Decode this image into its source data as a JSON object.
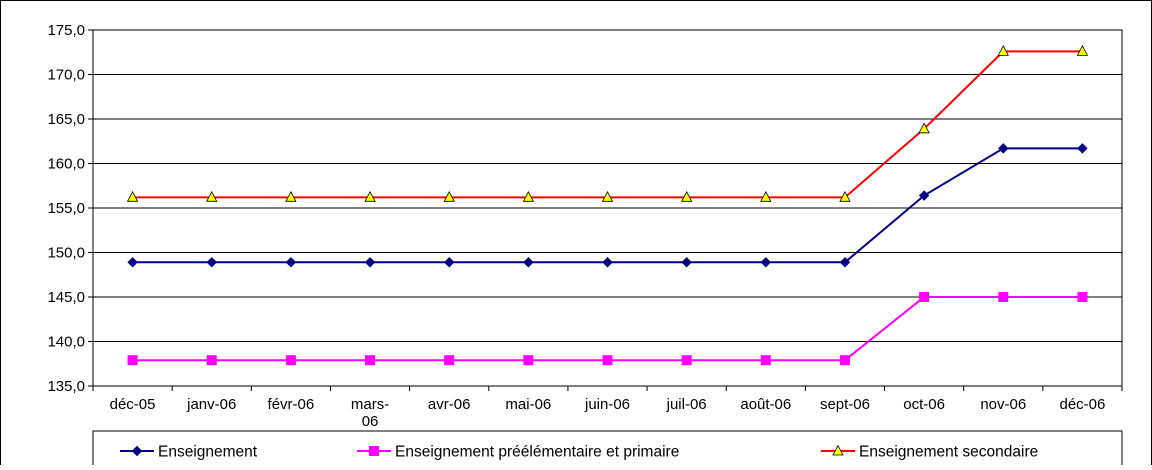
{
  "chart_data": {
    "type": "line",
    "title": "",
    "xlabel": "",
    "ylabel": "",
    "categories": [
      [
        "déc-05"
      ],
      [
        "janv-06"
      ],
      [
        "févr-06"
      ],
      [
        "mars-",
        "06"
      ],
      [
        "avr-06"
      ],
      [
        "mai-06"
      ],
      [
        "juin-06"
      ],
      [
        "juil-06"
      ],
      [
        "août-06"
      ],
      [
        "sept-06"
      ],
      [
        "oct-06"
      ],
      [
        "nov-06"
      ],
      [
        "déc-06"
      ]
    ],
    "ylim": [
      135.0,
      175.0
    ],
    "y_ticks": [
      "135,0",
      "140,0",
      "145,0",
      "150,0",
      "155,0",
      "160,0",
      "165,0",
      "170,0",
      "175,0"
    ],
    "grid": true,
    "legend_position": "bottom",
    "series": [
      {
        "name": "Enseignement",
        "color": "#000080",
        "marker": "diamond",
        "marker_fill": "#000080",
        "values": [
          148.9,
          148.9,
          148.9,
          148.9,
          148.9,
          148.9,
          148.9,
          148.9,
          148.9,
          148.9,
          156.4,
          161.7,
          161.7
        ]
      },
      {
        "name": "Enseignement préélémentaire et primaire",
        "color": "#FF00FF",
        "marker": "square",
        "marker_fill": "#FF00FF",
        "values": [
          137.9,
          137.9,
          137.9,
          137.9,
          137.9,
          137.9,
          137.9,
          137.9,
          137.9,
          137.9,
          145.0,
          145.0,
          145.0
        ]
      },
      {
        "name": "Enseignement secondaire",
        "color": "#FF0000",
        "marker": "triangle",
        "marker_fill": "#FFFF00",
        "values": [
          156.2,
          156.2,
          156.2,
          156.2,
          156.2,
          156.2,
          156.2,
          156.2,
          156.2,
          156.2,
          163.9,
          172.6,
          172.6
        ]
      }
    ]
  }
}
